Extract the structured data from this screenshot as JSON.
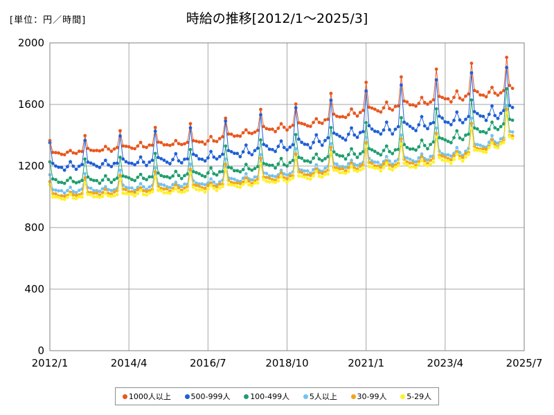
{
  "chart_data": {
    "type": "line",
    "title": "時給の推移[2012/1〜2025/3]",
    "unit_label": "[単位：円／時間]",
    "xlabel": "",
    "ylabel": "",
    "ylim": [
      0,
      2000
    ],
    "yticks": [
      0,
      400,
      800,
      1200,
      1600,
      2000
    ],
    "x_range_months": [
      0,
      162
    ],
    "xticks": [
      {
        "month": 0,
        "label": "2012/1"
      },
      {
        "month": 27,
        "label": "2014/4"
      },
      {
        "month": 54,
        "label": "2016/7"
      },
      {
        "month": 81,
        "label": "2018/10"
      },
      {
        "month": 108,
        "label": "2021/1"
      },
      {
        "month": 135,
        "label": "2023/4"
      },
      {
        "month": 162,
        "label": "2025/7"
      }
    ],
    "n_points": 159,
    "grid": true,
    "legend_position": "bottom",
    "series": [
      {
        "name": "1000人以上",
        "color": "#e8571e",
        "base": [
          1270,
          1300,
          1330,
          1350,
          1420,
          1460,
          1540,
          1590,
          1640,
          1680
        ],
        "spike": [
          100,
          110,
          120,
          130,
          140,
          160,
          190,
          200,
          220,
          230
        ]
      },
      {
        "name": "500-999人",
        "color": "#1f5fd6",
        "base": [
          1180,
          1200,
          1220,
          1240,
          1290,
          1330,
          1400,
          1440,
          1490,
          1540
        ],
        "spike": [
          170,
          180,
          200,
          220,
          240,
          260,
          280,
          290,
          300,
          310
        ]
      },
      {
        "name": "100-499人",
        "color": "#1f9e6e",
        "base": [
          1090,
          1100,
          1120,
          1140,
          1180,
          1230,
          1270,
          1300,
          1380,
          1470
        ],
        "spike": [
          140,
          150,
          160,
          170,
          180,
          190,
          210,
          220,
          230,
          240
        ]
      },
      {
        "name": "5人以上",
        "color": "#74c2f0",
        "base": [
          1030,
          1040,
          1060,
          1080,
          1120,
          1160,
          1210,
          1230,
          1280,
          1390
        ],
        "spike": [
          110,
          120,
          130,
          140,
          150,
          160,
          170,
          180,
          200,
          220
        ]
      },
      {
        "name": "30-99人",
        "color": "#f0a51a",
        "base": [
          1000,
          1020,
          1040,
          1060,
          1100,
          1140,
          1190,
          1210,
          1260,
          1370
        ],
        "spike": [
          100,
          110,
          120,
          130,
          140,
          150,
          160,
          170,
          190,
          210
        ]
      },
      {
        "name": "5-29人",
        "color": "#fff12a",
        "base": [
          985,
          1000,
          1020,
          1040,
          1080,
          1120,
          1170,
          1190,
          1240,
          1360
        ],
        "spike": [
          90,
          100,
          110,
          120,
          130,
          140,
          150,
          160,
          180,
          200
        ]
      }
    ]
  }
}
